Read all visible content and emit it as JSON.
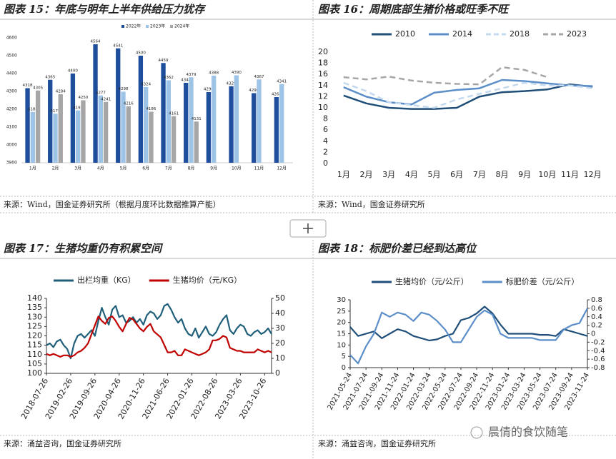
{
  "chart_data": [
    {
      "type": "bar",
      "title": "图表 15：年底与明年上半年供给压力犹存",
      "source": "来源：Wind，国金证券研究所（根据月度环比数据推算产能）",
      "categories": [
        "1月",
        "2月",
        "3月",
        "4月",
        "5月",
        "6月",
        "7月",
        "8月",
        "9月",
        "10月",
        "11月",
        "12月"
      ],
      "series": [
        {
          "name": "2022年",
          "color": "#1f4e9c",
          "values": [
            4318,
            4365,
            4400,
            4564,
            4541,
            4500,
            4459,
            4348,
            4296,
            4329,
            4290,
            4268
          ]
        },
        {
          "name": "2023年",
          "color": "#9dc3e6",
          "values": [
            4185,
            4175,
            4193,
            4277,
            4298,
            4324,
            4362,
            4379,
            4388,
            4390,
            4367,
            4341
          ]
        },
        {
          "name": "2024年",
          "color": "#a6a6a6",
          "values": [
            4305,
            4284,
            4250,
            4241,
            4216,
            4186,
            4161,
            4131,
            null,
            null,
            null,
            null
          ]
        }
      ],
      "ylim": [
        3900,
        4600
      ],
      "yticks": [
        3900,
        4000,
        4100,
        4200,
        4300,
        4400,
        4500,
        4600
      ]
    },
    {
      "type": "line",
      "title": "图表 16：周期底部生猪价格或旺季不旺",
      "source": "来源：Wind，国金证券研究所",
      "categories": [
        "1月",
        "2月",
        "3月",
        "4月",
        "5月",
        "6月",
        "7月",
        "8月",
        "9月",
        "10月",
        "11月",
        "12月"
      ],
      "series": [
        {
          "name": "2010",
          "color": "#1f4e79",
          "dashed": false,
          "values": [
            12.2,
            10.8,
            10.0,
            9.8,
            9.8,
            10.0,
            12.0,
            12.8,
            13.0,
            13.3,
            14.2,
            13.8
          ]
        },
        {
          "name": "2014",
          "color": "#5b8ec9",
          "dashed": false,
          "values": [
            13.7,
            12.0,
            11.0,
            10.6,
            12.7,
            13.2,
            13.5,
            15.0,
            14.8,
            14.4,
            14.0,
            13.9
          ]
        },
        {
          "name": "2018",
          "color": "#c5d9ee",
          "dashed": true,
          "values": [
            14.5,
            13.0,
            11.0,
            10.5,
            10.0,
            11.5,
            12.5,
            13.5,
            14.5,
            14.0,
            14.0,
            13.5
          ]
        },
        {
          "name": "2023",
          "color": "#a6a6a6",
          "dashed": true,
          "values": [
            15.5,
            15.1,
            15.6,
            14.9,
            14.5,
            14.3,
            14.2,
            17.3,
            16.8,
            15.5,
            null,
            null
          ]
        }
      ],
      "ylim": [
        0,
        20
      ],
      "yticks": [
        0,
        2,
        4,
        6,
        8,
        10,
        12,
        14,
        16,
        18,
        20
      ]
    },
    {
      "type": "line",
      "title": "图表 17：生猪均重仍有积累空间",
      "source": "来源：涌益咨询，国金证券研究所",
      "categories": [
        "2018-07-26",
        null,
        null,
        null,
        null,
        null,
        null,
        "2019-02-26",
        null,
        null,
        null,
        null,
        null,
        null,
        "2019-09-26",
        null,
        null,
        null,
        null,
        null,
        null,
        "2020-04-26",
        null,
        null,
        null,
        null,
        null,
        null,
        "2020-11-26",
        null,
        null,
        null,
        null,
        null,
        null,
        "2021-06-26",
        null,
        null,
        null,
        null,
        null,
        null,
        "2022-01-26",
        null,
        null,
        null,
        null,
        null,
        null,
        "2022-08-26",
        null,
        null,
        null,
        null,
        null,
        null,
        "2023-03-26",
        null,
        null,
        null,
        null,
        null,
        null,
        "2023-10-26",
        null,
        null
      ],
      "series": [
        {
          "name": "出栏均重（KG）",
          "color": "#1f5f7a",
          "values": [
            115,
            116,
            114,
            117,
            118,
            115,
            113,
            108,
            116,
            120,
            121,
            119,
            121,
            123,
            120,
            128,
            135,
            130,
            126,
            134,
            136,
            130,
            131,
            127,
            128,
            130,
            127,
            129,
            126,
            131,
            133,
            132,
            129,
            131,
            136,
            137,
            134,
            130,
            127,
            129,
            124,
            121,
            120,
            124,
            119,
            122,
            125,
            121,
            120,
            122,
            126,
            129,
            131,
            123,
            121,
            124,
            126,
            125,
            121,
            120,
            122,
            123,
            121,
            122,
            124,
            121
          ]
        },
        {
          "name": "生猪均价（元/KG）",
          "color": "#c00000",
          "axis": "y2",
          "values": [
            13,
            12,
            13,
            12,
            11,
            12,
            12,
            11,
            12,
            14,
            15,
            17,
            20,
            26,
            32,
            38,
            35,
            33,
            37,
            38,
            35,
            31,
            28,
            33,
            37,
            36,
            33,
            30,
            28,
            31,
            33,
            28,
            26,
            24,
            19,
            14,
            14,
            15,
            12,
            12,
            16,
            15,
            14,
            13,
            12,
            13,
            14,
            16,
            22,
            22,
            23,
            25,
            24,
            17,
            16,
            15,
            15,
            14,
            14,
            14,
            14,
            16,
            15,
            14,
            15,
            14
          ]
        }
      ],
      "ylim": [
        100,
        140
      ],
      "yticks": [
        100,
        105,
        110,
        115,
        120,
        125,
        130,
        135,
        140
      ],
      "y2lim": [
        0,
        50
      ],
      "y2ticks": [
        0,
        10,
        20,
        30,
        40,
        50
      ]
    },
    {
      "type": "line",
      "title": "图表 18：标肥价差已经到达高位",
      "source": "来源：涌益咨询，国金证券研究所",
      "categories": [
        "2021-05-24",
        null,
        "2021-07-24",
        null,
        "2021-09-24",
        null,
        "2021-11-24",
        null,
        "2022-01-24",
        null,
        "2022-03-24",
        null,
        "2022-05-24",
        null,
        "2022-07-24",
        null,
        "2022-09-24",
        null,
        "2022-11-24",
        null,
        "2023-01-24",
        null,
        "2023-03-24",
        null,
        "2023-05-24",
        null,
        "2023-07-24",
        null,
        "2023-09-24",
        null,
        "2023-11-24"
      ],
      "series": [
        {
          "name": "生猪均价（元/公斤）",
          "color": "#1f4e79",
          "values": [
            18,
            14,
            15,
            16,
            13,
            15,
            17,
            16,
            14,
            13,
            12,
            12.5,
            14,
            15,
            21,
            22,
            24,
            27,
            24,
            19,
            15,
            15,
            15,
            15,
            14.5,
            14.5,
            14,
            17,
            16,
            15,
            14
          ]
        },
        {
          "name": "标肥价差（元/公斤）",
          "color": "#5b8ec9",
          "axis": "y2",
          "values": [
            -0.5,
            -0.7,
            -0.3,
            0.0,
            0.5,
            0.4,
            0.5,
            0.45,
            0.3,
            0.5,
            0.45,
            0.3,
            0.1,
            -0.2,
            -0.2,
            0.1,
            0.4,
            0.55,
            0.45,
            0.0,
            -0.1,
            -0.1,
            -0.1,
            -0.1,
            -0.15,
            -0.15,
            -0.15,
            0.1,
            0.2,
            0.25,
            0.6
          ]
        }
      ],
      "ylim": [
        0,
        30
      ],
      "yticks": [
        0,
        5,
        10,
        15,
        20,
        25,
        30
      ],
      "y2lim": [
        -0.8,
        0.8
      ],
      "y2ticks": [
        -0.8,
        -0.6,
        -0.4,
        -0.2,
        0,
        0.2,
        0.4,
        0.6,
        0.8
      ]
    }
  ],
  "watermark": "晨倩的食饮随笔"
}
